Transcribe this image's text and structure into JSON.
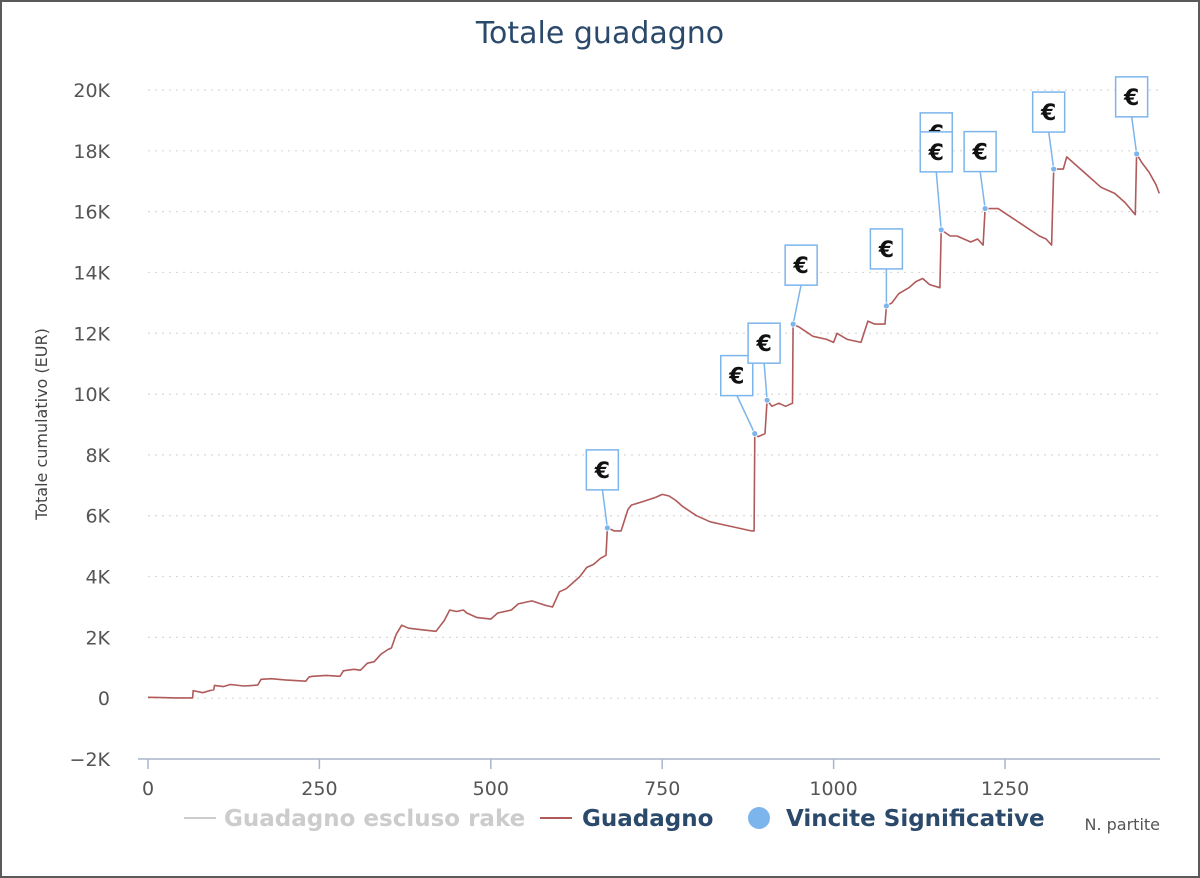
{
  "chart_data": {
    "type": "line",
    "title": "Totale guadagno",
    "ylabel": "Totale cumulativo (EUR)",
    "xlabel": "N. partite",
    "ylim": [
      -2000,
      20000
    ],
    "xlim": [
      0,
      1475
    ],
    "y_ticks": [
      {
        "value": -2000,
        "label": "−2K"
      },
      {
        "value": 0,
        "label": "0"
      },
      {
        "value": 2000,
        "label": "2K"
      },
      {
        "value": 4000,
        "label": "4K"
      },
      {
        "value": 6000,
        "label": "6K"
      },
      {
        "value": 8000,
        "label": "8K"
      },
      {
        "value": 10000,
        "label": "10K"
      },
      {
        "value": 12000,
        "label": "12K"
      },
      {
        "value": 14000,
        "label": "14K"
      },
      {
        "value": 16000,
        "label": "16K"
      },
      {
        "value": 18000,
        "label": "18K"
      },
      {
        "value": 20000,
        "label": "20K"
      }
    ],
    "x_ticks": [
      {
        "value": 0,
        "label": "0"
      },
      {
        "value": 250,
        "label": "250"
      },
      {
        "value": 500,
        "label": "500"
      },
      {
        "value": 750,
        "label": "750"
      },
      {
        "value": 1000,
        "label": "1000"
      },
      {
        "value": 1250,
        "label": "1250"
      }
    ],
    "grid": "horizontal-dotted",
    "legend": {
      "placement": "bottom",
      "items": [
        {
          "name": "Guadagno escluso rake",
          "color": "#cccccc",
          "symbol": "line",
          "hidden": true
        },
        {
          "name": "Guadagno",
          "color": "#b05a5a",
          "symbol": "line"
        },
        {
          "name": "Vincite Significative",
          "color": "#7cb5ec",
          "symbol": "circle"
        }
      ]
    },
    "series": [
      {
        "name": "Guadagno",
        "color": "#b05a5a",
        "points": [
          [
            0,
            30
          ],
          [
            20,
            20
          ],
          [
            40,
            10
          ],
          [
            65,
            10
          ],
          [
            66,
            250
          ],
          [
            80,
            180
          ],
          [
            90,
            250
          ],
          [
            96,
            280
          ],
          [
            97,
            420
          ],
          [
            110,
            380
          ],
          [
            120,
            450
          ],
          [
            140,
            400
          ],
          [
            160,
            430
          ],
          [
            165,
            620
          ],
          [
            180,
            640
          ],
          [
            200,
            600
          ],
          [
            230,
            560
          ],
          [
            235,
            700
          ],
          [
            240,
            720
          ],
          [
            260,
            750
          ],
          [
            280,
            720
          ],
          [
            285,
            900
          ],
          [
            300,
            950
          ],
          [
            310,
            920
          ],
          [
            320,
            1150
          ],
          [
            330,
            1200
          ],
          [
            340,
            1450
          ],
          [
            350,
            1600
          ],
          [
            355,
            1650
          ],
          [
            362,
            2100
          ],
          [
            370,
            2400
          ],
          [
            380,
            2300
          ],
          [
            400,
            2250
          ],
          [
            420,
            2200
          ],
          [
            432,
            2550
          ],
          [
            440,
            2900
          ],
          [
            450,
            2850
          ],
          [
            460,
            2900
          ],
          [
            465,
            2800
          ],
          [
            480,
            2650
          ],
          [
            500,
            2600
          ],
          [
            510,
            2800
          ],
          [
            530,
            2900
          ],
          [
            540,
            3100
          ],
          [
            560,
            3200
          ],
          [
            580,
            3050
          ],
          [
            590,
            3000
          ],
          [
            600,
            3500
          ],
          [
            610,
            3600
          ],
          [
            620,
            3800
          ],
          [
            630,
            4000
          ],
          [
            640,
            4300
          ],
          [
            650,
            4400
          ],
          [
            660,
            4600
          ],
          [
            668,
            4700
          ],
          [
            670,
            5600
          ],
          [
            680,
            5500
          ],
          [
            690,
            5500
          ],
          [
            700,
            6200
          ],
          [
            705,
            6350
          ],
          [
            720,
            6450
          ],
          [
            740,
            6600
          ],
          [
            750,
            6700
          ],
          [
            760,
            6650
          ],
          [
            770,
            6500
          ],
          [
            780,
            6300
          ],
          [
            800,
            6000
          ],
          [
            820,
            5800
          ],
          [
            840,
            5700
          ],
          [
            860,
            5600
          ],
          [
            880,
            5500
          ],
          [
            884,
            5500
          ],
          [
            885,
            8700
          ],
          [
            890,
            8600
          ],
          [
            900,
            8700
          ],
          [
            903,
            9800
          ],
          [
            910,
            9600
          ],
          [
            920,
            9700
          ],
          [
            930,
            9600
          ],
          [
            940,
            9700
          ],
          [
            941,
            12300
          ],
          [
            950,
            12200
          ],
          [
            970,
            11900
          ],
          [
            990,
            11800
          ],
          [
            1000,
            11700
          ],
          [
            1005,
            12000
          ],
          [
            1020,
            11800
          ],
          [
            1040,
            11700
          ],
          [
            1050,
            12400
          ],
          [
            1060,
            12300
          ],
          [
            1075,
            12300
          ],
          [
            1077,
            12900
          ],
          [
            1085,
            13000
          ],
          [
            1095,
            13300
          ],
          [
            1110,
            13500
          ],
          [
            1120,
            13700
          ],
          [
            1130,
            13800
          ],
          [
            1140,
            13600
          ],
          [
            1155,
            13500
          ],
          [
            1157,
            15400
          ],
          [
            1170,
            15200
          ],
          [
            1180,
            15200
          ],
          [
            1200,
            15000
          ],
          [
            1210,
            15100
          ],
          [
            1218,
            14900
          ],
          [
            1221,
            16100
          ],
          [
            1240,
            16100
          ],
          [
            1260,
            15800
          ],
          [
            1280,
            15500
          ],
          [
            1300,
            15200
          ],
          [
            1310,
            15100
          ],
          [
            1318,
            14900
          ],
          [
            1321,
            17400
          ],
          [
            1335,
            17400
          ],
          [
            1340,
            17800
          ],
          [
            1350,
            17600
          ],
          [
            1370,
            17200
          ],
          [
            1390,
            16800
          ],
          [
            1410,
            16600
          ],
          [
            1425,
            16300
          ],
          [
            1440,
            15900
          ],
          [
            1442,
            17900
          ],
          [
            1450,
            17600
          ],
          [
            1460,
            17300
          ],
          [
            1470,
            16900
          ],
          [
            1475,
            16600
          ]
        ]
      },
      {
        "name": "Vincite Significative",
        "color": "#7cb5ec",
        "type": "scatter",
        "flag_label": "€",
        "points": [
          [
            670,
            5600
          ],
          [
            885,
            8700
          ],
          [
            903,
            9800
          ],
          [
            941,
            12300
          ],
          [
            1077,
            12900
          ],
          [
            1157,
            15400
          ],
          [
            1221,
            16100
          ],
          [
            1321,
            17400
          ],
          [
            1442,
            17900
          ]
        ]
      }
    ]
  }
}
